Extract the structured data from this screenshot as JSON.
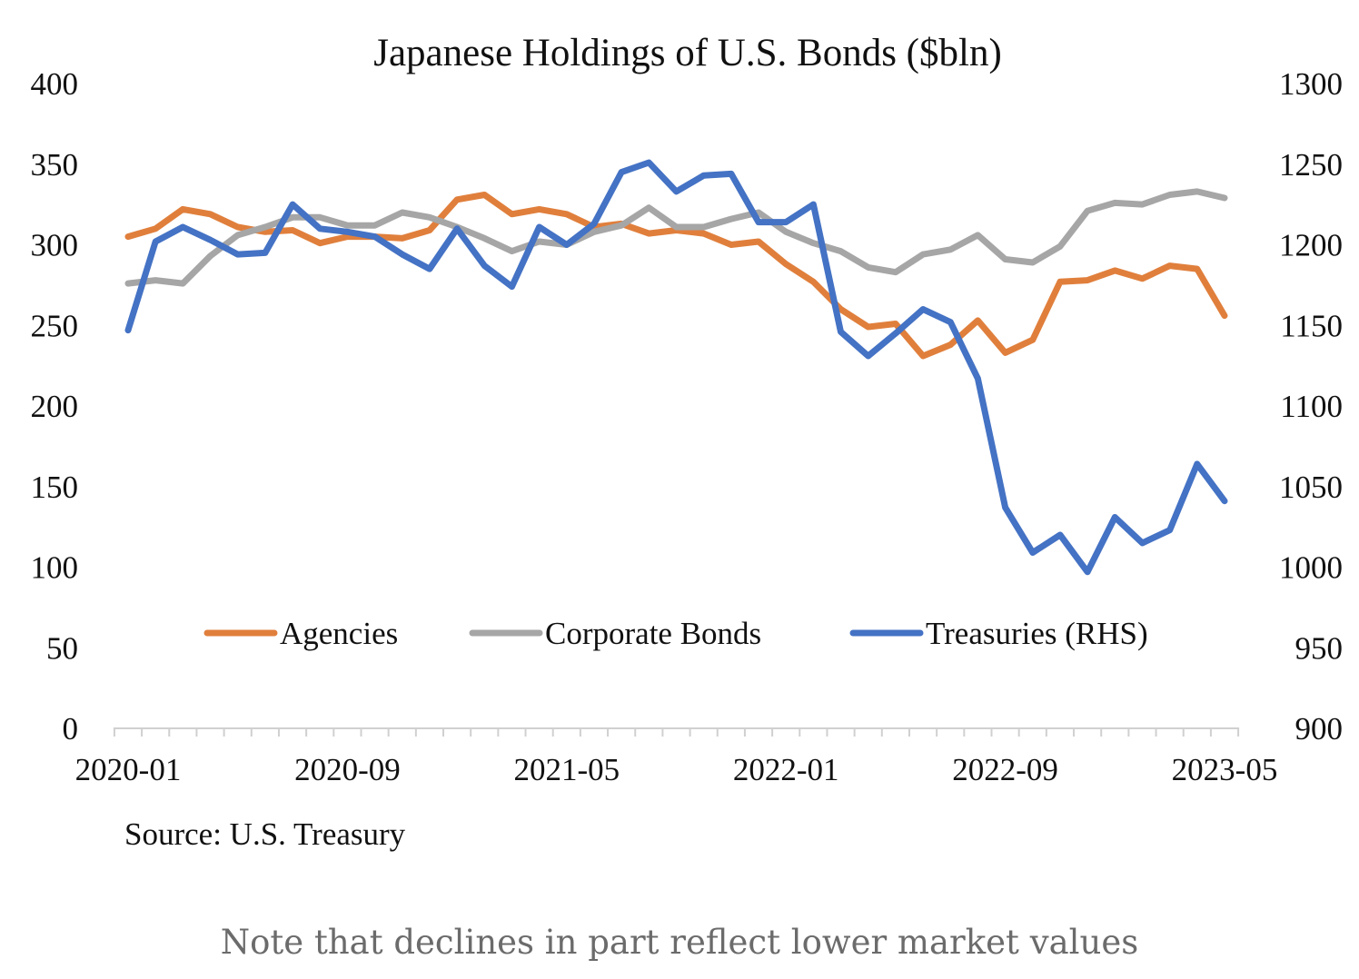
{
  "caption": "Note that declines in part reflect lower market values",
  "chart_data": {
    "type": "line",
    "title": "Japanese Holdings of U.S. Bonds ($bln)",
    "source": "Source: U.S. Treasury",
    "x": [
      "2020-01",
      "2020-02",
      "2020-03",
      "2020-04",
      "2020-05",
      "2020-06",
      "2020-07",
      "2020-08",
      "2020-09",
      "2020-10",
      "2020-11",
      "2020-12",
      "2021-01",
      "2021-02",
      "2021-03",
      "2021-04",
      "2021-05",
      "2021-06",
      "2021-07",
      "2021-08",
      "2021-09",
      "2021-10",
      "2021-11",
      "2021-12",
      "2022-01",
      "2022-02",
      "2022-03",
      "2022-04",
      "2022-05",
      "2022-06",
      "2022-07",
      "2022-08",
      "2022-09",
      "2022-10",
      "2022-11",
      "2022-12",
      "2023-01",
      "2023-02",
      "2023-03",
      "2023-04",
      "2023-05"
    ],
    "x_tick_labels": [
      "2020-01",
      "2020-09",
      "2021-05",
      "2022-01",
      "2022-09",
      "2023-05"
    ],
    "y_left": {
      "ylim": [
        0,
        400
      ],
      "ticks": [
        0,
        50,
        100,
        150,
        200,
        250,
        300,
        350,
        400
      ]
    },
    "y_right": {
      "ylim": [
        900,
        1300
      ],
      "ticks": [
        900,
        950,
        1000,
        1050,
        1100,
        1150,
        1200,
        1250,
        1300
      ]
    },
    "grid": false,
    "legend_position": "inside-bottom",
    "series": [
      {
        "name": "Agencies",
        "axis": "left",
        "color": "#E07F3C",
        "values": [
          305,
          310,
          322,
          319,
          311,
          308,
          309,
          301,
          305,
          305,
          304,
          309,
          328,
          331,
          319,
          322,
          319,
          311,
          313,
          307,
          309,
          307,
          300,
          302,
          288,
          277,
          260,
          249,
          251,
          231,
          238,
          253,
          233,
          241,
          277,
          278,
          284,
          279,
          287,
          285,
          256
        ]
      },
      {
        "name": "Corporate Bonds",
        "axis": "left",
        "color": "#A6A6A6",
        "values": [
          276,
          278,
          276,
          293,
          306,
          311,
          317,
          317,
          312,
          312,
          320,
          317,
          311,
          304,
          296,
          302,
          300,
          308,
          312,
          323,
          311,
          311,
          316,
          320,
          308,
          301,
          296,
          286,
          283,
          294,
          297,
          306,
          291,
          289,
          299,
          321,
          326,
          325,
          331,
          333,
          329
        ]
      },
      {
        "name": "Treasuries (RHS)",
        "axis": "right",
        "color": "#4472C4",
        "values": [
          1147,
          1202,
          1211,
          1203,
          1194,
          1195,
          1225,
          1210,
          1208,
          1205,
          1194,
          1185,
          1210,
          1187,
          1174,
          1211,
          1200,
          1213,
          1245,
          1251,
          1233,
          1243,
          1244,
          1214,
          1214,
          1225,
          1146,
          1131,
          1145,
          1160,
          1152,
          1117,
          1037,
          1009,
          1020,
          997,
          1031,
          1015,
          1023,
          1064,
          1041
        ]
      }
    ]
  }
}
